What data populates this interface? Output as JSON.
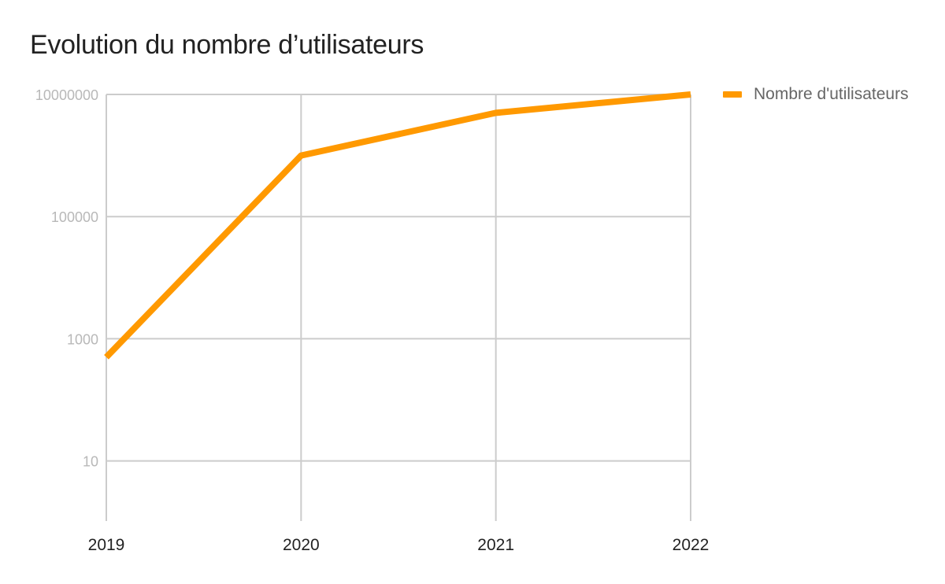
{
  "chart_data": {
    "type": "line",
    "title": "Evolution du nombre d’utilisateurs",
    "xlabel": "",
    "ylabel": "",
    "categories": [
      "2019",
      "2020",
      "2021",
      "2022"
    ],
    "y_scale": "log",
    "ylim": [
      1,
      10000000
    ],
    "y_ticks": [
      10,
      1000,
      100000,
      10000000
    ],
    "y_tick_labels": [
      "10",
      "1000",
      "100000",
      "10000000"
    ],
    "grid": true,
    "legend_position": "top-right",
    "series": [
      {
        "name": "Nombre d'utilisateurs",
        "color": "#ff9900",
        "values": [
          500,
          1000000,
          5000000,
          10000000
        ]
      }
    ]
  }
}
